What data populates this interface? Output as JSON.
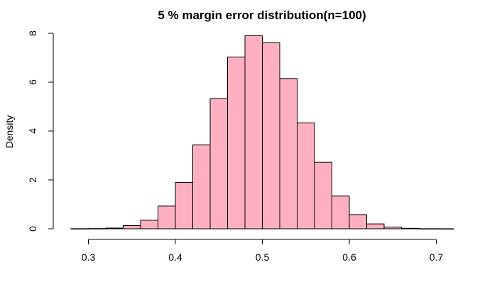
{
  "chart_data": {
    "type": "bar",
    "subtype": "histogram",
    "title": "5 % margin error distribution(n=100)",
    "xlabel": "",
    "ylabel": "Density",
    "bar_color": "#ffb0c0",
    "bin_width": 0.02,
    "bins": [
      {
        "start": 0.28,
        "end": 0.3,
        "density": 0.005
      },
      {
        "start": 0.3,
        "end": 0.32,
        "density": 0.01
      },
      {
        "start": 0.32,
        "end": 0.34,
        "density": 0.03
      },
      {
        "start": 0.34,
        "end": 0.36,
        "density": 0.13
      },
      {
        "start": 0.36,
        "end": 0.38,
        "density": 0.35
      },
      {
        "start": 0.38,
        "end": 0.4,
        "density": 0.93
      },
      {
        "start": 0.4,
        "end": 0.42,
        "density": 1.9
      },
      {
        "start": 0.42,
        "end": 0.44,
        "density": 3.43
      },
      {
        "start": 0.44,
        "end": 0.46,
        "density": 5.33
      },
      {
        "start": 0.46,
        "end": 0.48,
        "density": 7.03
      },
      {
        "start": 0.48,
        "end": 0.5,
        "density": 7.9
      },
      {
        "start": 0.5,
        "end": 0.52,
        "density": 7.62
      },
      {
        "start": 0.52,
        "end": 0.54,
        "density": 6.15
      },
      {
        "start": 0.54,
        "end": 0.56,
        "density": 4.33
      },
      {
        "start": 0.56,
        "end": 0.58,
        "density": 2.72
      },
      {
        "start": 0.58,
        "end": 0.6,
        "density": 1.34
      },
      {
        "start": 0.6,
        "end": 0.62,
        "density": 0.58
      },
      {
        "start": 0.62,
        "end": 0.64,
        "density": 0.2
      },
      {
        "start": 0.64,
        "end": 0.66,
        "density": 0.07
      },
      {
        "start": 0.66,
        "end": 0.68,
        "density": 0.02
      },
      {
        "start": 0.68,
        "end": 0.7,
        "density": 0.005
      },
      {
        "start": 0.7,
        "end": 0.72,
        "density": 0.003
      }
    ],
    "xlim": [
      0.28,
      0.72
    ],
    "ylim": [
      0,
      8
    ],
    "x_ticks": [
      {
        "value": 0.3,
        "label": "0.3"
      },
      {
        "value": 0.4,
        "label": "0.4"
      },
      {
        "value": 0.5,
        "label": "0.5"
      },
      {
        "value": 0.6,
        "label": "0.6"
      },
      {
        "value": 0.7,
        "label": "0.7"
      }
    ],
    "y_ticks": [
      {
        "value": 0,
        "label": "0"
      },
      {
        "value": 2,
        "label": "2"
      },
      {
        "value": 4,
        "label": "4"
      },
      {
        "value": 6,
        "label": "6"
      },
      {
        "value": 8,
        "label": "8"
      }
    ],
    "grid": false,
    "legend": "none"
  }
}
